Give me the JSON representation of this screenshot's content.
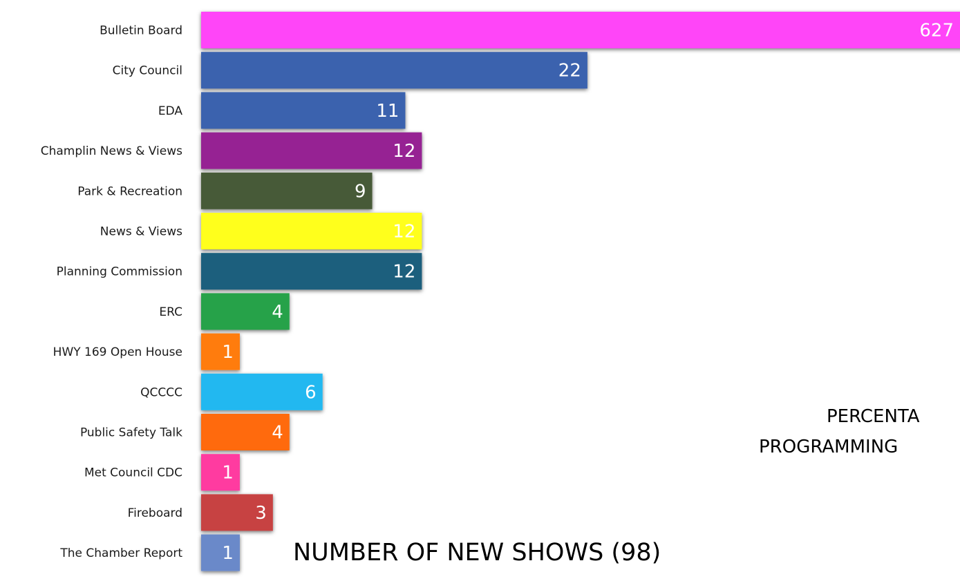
{
  "chart_data": {
    "type": "bar",
    "orientation": "horizontal",
    "categories": [
      "Bulletin Board",
      "City Council",
      "EDA",
      "Champlin News & Views",
      "Park & Recreation",
      "News & Views",
      "Planning Commission",
      "ERC",
      "HWY 169 Open House",
      "QCCCC",
      "Public Safety Talk",
      "Met Council CDC",
      "Fireboard",
      "The Chamber Report"
    ],
    "values": [
      627,
      22,
      11,
      12,
      9,
      12,
      12,
      4,
      1,
      6,
      4,
      1,
      3,
      1
    ],
    "value_labels": [
      "627",
      "22",
      "11",
      "12",
      "9",
      "12",
      "12",
      "4",
      "1",
      "6",
      "4",
      "1",
      "3",
      "1"
    ],
    "colors": [
      "#ff45f8",
      "#3a62ae",
      "#3a62ae",
      "#962293",
      "#475a39",
      "#ffff1a",
      "#1a5e7d",
      "#27a24a",
      "#ff7b0d",
      "#20b8f0",
      "#ff6a0a",
      "#ff3aa0",
      "#c74242",
      "#6a89c9"
    ],
    "footer": "NUMBER OF NEW SHOWS (98)",
    "side_text": [
      "PERCENTA",
      "PROGRAMMING"
    ],
    "xlabel": "",
    "ylabel": ""
  }
}
